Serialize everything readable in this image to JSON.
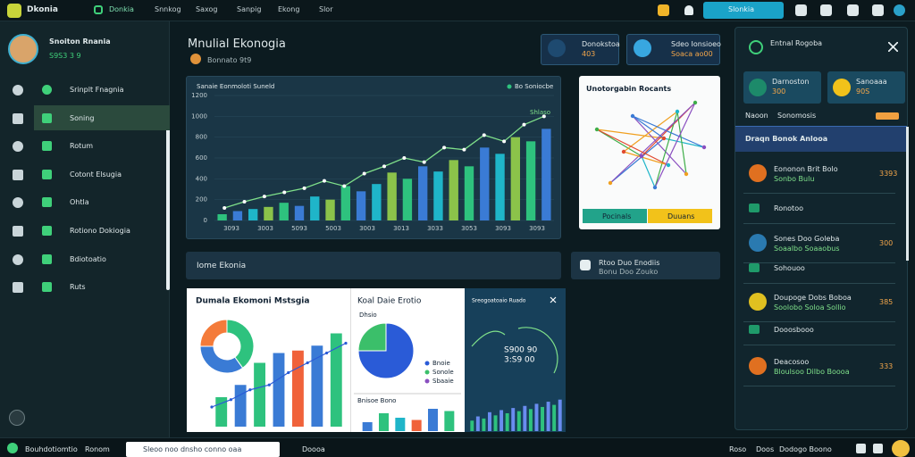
{
  "topbar": {
    "brand": "Dkonia",
    "nav": [
      "Donkia",
      "Snnkog",
      "Saxog",
      "Sanpig",
      "Ekong",
      "Slor"
    ],
    "search": "Slonkia"
  },
  "sidebar": {
    "user": "Snoiton Rnania",
    "user_sub": "S9S3 3 9",
    "items": [
      "Srinplt Fnagnia",
      "Soning",
      "Rotum",
      "Cotont Elsugia",
      "Ohtla",
      "Rotiono Dokiogia",
      "Bdiotoatio",
      "Ruts"
    ]
  },
  "header": {
    "title": "Mnulial Ekonogia",
    "subtitle": "Bonnato 9t9"
  },
  "cards": [
    {
      "label": "Donokstoa",
      "value": "403"
    },
    {
      "label": "Sdeo Ionsioeo",
      "value": "Soaca ao00"
    }
  ],
  "main_chart": {
    "type": "bar",
    "title": "Sanaie Eonmoloti Suneld",
    "legend": "Bo Soniocbe",
    "line_label": "Shlaso",
    "categories": [
      "3093",
      "3003",
      "5093",
      "5003",
      "3003",
      "3013",
      "3033",
      "3053",
      "3093",
      "3093"
    ],
    "values": [
      60,
      90,
      110,
      130,
      170,
      140,
      230,
      200,
      330,
      280,
      350,
      460,
      400,
      520,
      470,
      580,
      520,
      700,
      640,
      800,
      760,
      880
    ],
    "colors": [
      "#2ec27e",
      "#3a7bd5",
      "#1fb5c9",
      "#8bc34a"
    ],
    "line": [
      120,
      180,
      230,
      270,
      310,
      380,
      330,
      450,
      520,
      600,
      560,
      700,
      680,
      820,
      760,
      920,
      1000
    ],
    "line_color": "#7fe08a",
    "ylim": [
      0,
      1200
    ],
    "yticks": [
      0,
      200,
      400,
      600,
      800,
      1000,
      1200
    ]
  },
  "network": {
    "title": "Unotorgabin Rocants",
    "buttons": [
      "Pocinals",
      "Duuans"
    ]
  },
  "strip": {
    "title": "Iome Ekonia",
    "right_title": "Rtoo Duo Enodiis",
    "right_sub": "Bonu Doo Zouko"
  },
  "panel_a": {
    "title": "Dumala Ekomoni Mstsgia",
    "donut": [
      40,
      35,
      25
    ],
    "donut_colors": [
      "#2ec27e",
      "#3a7bd5",
      "#f47b3a"
    ],
    "bars": [
      120,
      170,
      260,
      300,
      310,
      330,
      380
    ],
    "bar_colors": [
      "#2ec27e",
      "#3a7bd5",
      "#2ec27e",
      "#3a7bd5",
      "#f0623a",
      "#3a7bd5",
      "#2ec27e"
    ],
    "line": [
      80,
      110,
      150,
      170,
      220,
      260,
      300,
      340
    ],
    "ylim": [
      0,
      400
    ]
  },
  "panel_b": {
    "title": "Koal Daie Erotio",
    "subtitle": "Dhsio",
    "pie": [
      75,
      25
    ],
    "pie_colors": [
      "#2a5bd7",
      "#3bbf6a"
    ],
    "legend": [
      "Bnoie",
      "Sonole",
      "Sbaaie"
    ],
    "bar_label": "Bnisoe Bono",
    "bars": [
      20,
      40,
      30,
      25,
      50,
      45
    ],
    "bar_colors": [
      "#3a7bd5",
      "#2ec27e",
      "#1fb5c9",
      "#f0623a",
      "#3a7bd5",
      "#2ec27e"
    ],
    "ylim": [
      0,
      60
    ]
  },
  "panel_c": {
    "title": "Sreogoatoaio Ruado",
    "value_1": "S900 90",
    "value_2": "3:S9 00",
    "bars": [
      10,
      14,
      12,
      18,
      15,
      20,
      17,
      22,
      19,
      24,
      21,
      26,
      23,
      28,
      25,
      30
    ],
    "ylim": [
      0,
      34
    ]
  },
  "right_panel": {
    "title": "Entnal Rogoba",
    "cards": [
      {
        "label": "Darnoston",
        "value": "300"
      },
      {
        "label": "Sanoaaa",
        "value": "90S"
      }
    ],
    "tabs": [
      "Naoon",
      "Sonomosis"
    ],
    "header": "Draqn Bonok Anlooa",
    "items": [
      {
        "name": "Eononon Brit Bolo",
        "sub": "Sonbo Bulu",
        "value": "3393"
      },
      {
        "name": "Ronotoo"
      },
      {
        "name": "Sones Doo Goleba",
        "sub": "Soaalbo Soaaobus",
        "value": "300"
      },
      {
        "name": "Sohouoo"
      },
      {
        "name": "Doupoge Dobs Boboa",
        "sub": "Soolobo Soloa Sollio",
        "value": "385"
      },
      {
        "name": "Dooosbooo"
      },
      {
        "name": "Deacosoo",
        "sub": "Bloulsoo Dilbo Boooa",
        "value": "333"
      }
    ]
  },
  "bottombar": {
    "left": [
      "Bouhdotiomtio",
      "Ronom"
    ],
    "search": "Sleoo noo dnsho conno oaa",
    "mid": "Doooa",
    "right": [
      "Roso",
      "Doos",
      "Dodogo Boono"
    ]
  }
}
